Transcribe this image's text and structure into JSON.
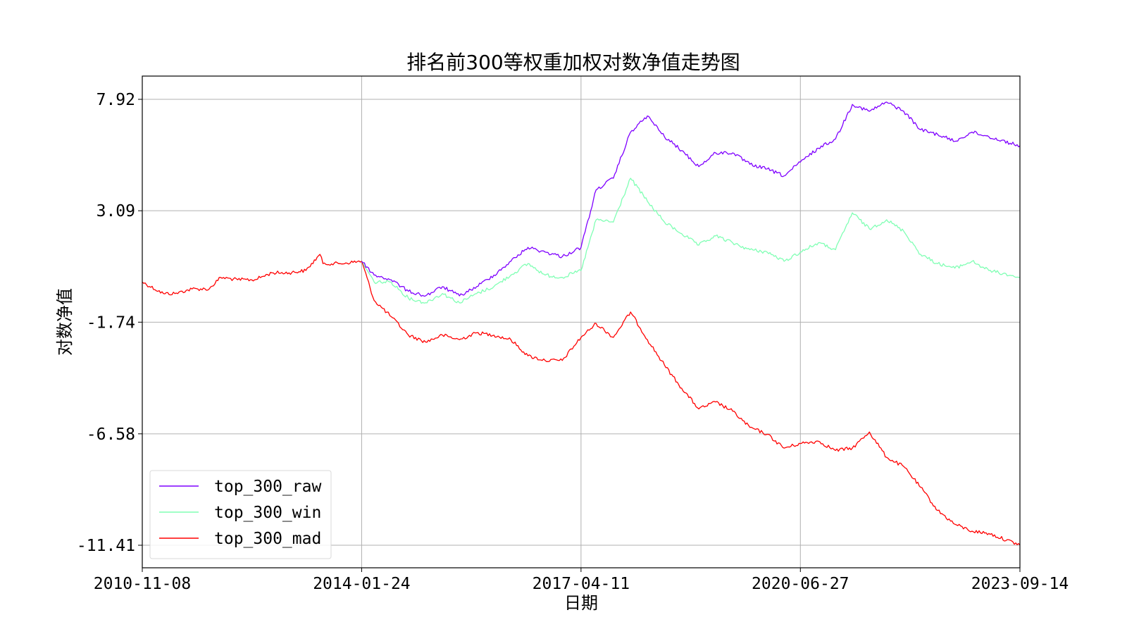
{
  "chart_data": {
    "type": "line",
    "title": "排名前300等权重加权对数净值走势图",
    "xlabel": "日期",
    "ylabel": "对数净值",
    "x_ticks": [
      "2010-11-08",
      "2014-01-24",
      "2017-04-11",
      "2020-06-27",
      "2023-09-14"
    ],
    "y_ticks": [
      7.92,
      3.09,
      -1.74,
      -6.58,
      -11.41
    ],
    "y_tick_labels": [
      "7.92",
      "3.09",
      "-1.74",
      "-6.58",
      "-11.41"
    ],
    "xlim": [
      "2010-11-08",
      "2023-09-14"
    ],
    "ylim": [
      -12.4,
      8.9
    ],
    "grid": true,
    "legend_position": "lower-left",
    "series": [
      {
        "name": "top_300_raw",
        "color": "#7f00ff",
        "points": [
          [
            "2014-01-24",
            0.9
          ],
          [
            "2014-04-01",
            0.3
          ],
          [
            "2014-07-01",
            0.1
          ],
          [
            "2014-10-01",
            -0.4
          ],
          [
            "2015-01-01",
            -0.6
          ],
          [
            "2015-04-01",
            -0.2
          ],
          [
            "2015-07-01",
            -0.6
          ],
          [
            "2015-10-01",
            -0.2
          ],
          [
            "2016-01-01",
            0.3
          ],
          [
            "2016-04-01",
            0.9
          ],
          [
            "2016-07-01",
            1.5
          ],
          [
            "2016-10-01",
            1.3
          ],
          [
            "2017-01-01",
            1.1
          ],
          [
            "2017-04-11",
            1.5
          ],
          [
            "2017-07-01",
            4.0
          ],
          [
            "2017-10-01",
            4.5
          ],
          [
            "2018-01-01",
            6.5
          ],
          [
            "2018-04-01",
            7.2
          ],
          [
            "2018-07-01",
            6.3
          ],
          [
            "2018-10-01",
            5.7
          ],
          [
            "2019-01-01",
            5.0
          ],
          [
            "2019-04-01",
            5.6
          ],
          [
            "2019-07-01",
            5.6
          ],
          [
            "2019-10-01",
            5.1
          ],
          [
            "2020-01-01",
            4.9
          ],
          [
            "2020-04-01",
            4.6
          ],
          [
            "2020-06-27",
            5.2
          ],
          [
            "2020-10-01",
            5.8
          ],
          [
            "2021-01-01",
            6.2
          ],
          [
            "2021-04-01",
            7.7
          ],
          [
            "2021-07-01",
            7.4
          ],
          [
            "2021-10-01",
            7.8
          ],
          [
            "2022-01-01",
            7.4
          ],
          [
            "2022-04-01",
            6.6
          ],
          [
            "2022-07-01",
            6.4
          ],
          [
            "2022-10-01",
            6.1
          ],
          [
            "2023-01-01",
            6.5
          ],
          [
            "2023-04-01",
            6.3
          ],
          [
            "2023-09-14",
            5.9
          ]
        ]
      },
      {
        "name": "top_300_win",
        "color": "#80ffb4",
        "points": [
          [
            "2014-01-24",
            0.9
          ],
          [
            "2014-04-01",
            0.0
          ],
          [
            "2014-07-01",
            0.0
          ],
          [
            "2014-10-01",
            -0.7
          ],
          [
            "2015-01-01",
            -0.9
          ],
          [
            "2015-04-01",
            -0.5
          ],
          [
            "2015-07-01",
            -0.9
          ],
          [
            "2015-10-01",
            -0.5
          ],
          [
            "2016-01-01",
            -0.2
          ],
          [
            "2016-04-01",
            0.3
          ],
          [
            "2016-07-01",
            0.8
          ],
          [
            "2016-10-01",
            0.3
          ],
          [
            "2017-01-01",
            0.2
          ],
          [
            "2017-04-11",
            0.5
          ],
          [
            "2017-07-01",
            2.7
          ],
          [
            "2017-10-01",
            2.6
          ],
          [
            "2018-01-01",
            4.5
          ],
          [
            "2018-04-01",
            3.5
          ],
          [
            "2018-07-01",
            2.6
          ],
          [
            "2018-10-01",
            2.1
          ],
          [
            "2019-01-01",
            1.6
          ],
          [
            "2019-04-01",
            2.0
          ],
          [
            "2019-07-01",
            1.7
          ],
          [
            "2019-10-01",
            1.4
          ],
          [
            "2020-01-01",
            1.3
          ],
          [
            "2020-04-01",
            0.9
          ],
          [
            "2020-06-27",
            1.3
          ],
          [
            "2020-10-01",
            1.7
          ],
          [
            "2021-01-01",
            1.4
          ],
          [
            "2021-04-01",
            3.0
          ],
          [
            "2021-07-01",
            2.3
          ],
          [
            "2021-10-01",
            2.7
          ],
          [
            "2022-01-01",
            2.2
          ],
          [
            "2022-04-01",
            1.2
          ],
          [
            "2022-07-01",
            0.8
          ],
          [
            "2022-10-01",
            0.6
          ],
          [
            "2023-01-01",
            0.9
          ],
          [
            "2023-04-01",
            0.5
          ],
          [
            "2023-09-14",
            0.2
          ]
        ]
      },
      {
        "name": "top_300_mad",
        "color": "#ff0000",
        "points": [
          [
            "2010-11-08",
            0.0
          ],
          [
            "2011-03-01",
            -0.5
          ],
          [
            "2011-05-01",
            -0.5
          ],
          [
            "2011-08-01",
            -0.3
          ],
          [
            "2011-11-01",
            -0.3
          ],
          [
            "2012-01-01",
            0.2
          ],
          [
            "2012-04-01",
            0.1
          ],
          [
            "2012-07-01",
            0.1
          ],
          [
            "2012-10-01",
            0.4
          ],
          [
            "2013-01-01",
            0.4
          ],
          [
            "2013-04-01",
            0.5
          ],
          [
            "2013-06-15",
            1.2
          ],
          [
            "2013-07-01",
            0.8
          ],
          [
            "2013-10-01",
            0.8
          ],
          [
            "2014-01-24",
            0.9
          ],
          [
            "2014-04-01",
            -0.8
          ],
          [
            "2014-07-01",
            -1.5
          ],
          [
            "2014-10-01",
            -2.3
          ],
          [
            "2015-01-01",
            -2.6
          ],
          [
            "2015-04-01",
            -2.3
          ],
          [
            "2015-07-01",
            -2.5
          ],
          [
            "2015-10-01",
            -2.2
          ],
          [
            "2016-01-01",
            -2.3
          ],
          [
            "2016-04-01",
            -2.5
          ],
          [
            "2016-07-01",
            -3.2
          ],
          [
            "2016-10-01",
            -3.4
          ],
          [
            "2017-01-01",
            -3.4
          ],
          [
            "2017-04-11",
            -2.4
          ],
          [
            "2017-07-01",
            -1.8
          ],
          [
            "2017-10-01",
            -2.4
          ],
          [
            "2018-01-01",
            -1.3
          ],
          [
            "2018-04-01",
            -2.5
          ],
          [
            "2018-07-01",
            -3.6
          ],
          [
            "2018-10-01",
            -4.6
          ],
          [
            "2019-01-01",
            -5.5
          ],
          [
            "2019-04-01",
            -5.2
          ],
          [
            "2019-07-01",
            -5.6
          ],
          [
            "2019-10-01",
            -6.3
          ],
          [
            "2020-01-01",
            -6.6
          ],
          [
            "2020-04-01",
            -7.2
          ],
          [
            "2020-06-27",
            -7.0
          ],
          [
            "2020-10-01",
            -6.9
          ],
          [
            "2021-01-01",
            -7.3
          ],
          [
            "2021-04-01",
            -7.2
          ],
          [
            "2021-07-01",
            -6.5
          ],
          [
            "2021-10-01",
            -7.6
          ],
          [
            "2022-01-01",
            -8.0
          ],
          [
            "2022-04-01",
            -8.9
          ],
          [
            "2022-07-01",
            -9.9
          ],
          [
            "2022-10-01",
            -10.5
          ],
          [
            "2023-01-01",
            -10.8
          ],
          [
            "2023-04-01",
            -10.9
          ],
          [
            "2023-09-14",
            -11.4
          ]
        ]
      }
    ]
  }
}
